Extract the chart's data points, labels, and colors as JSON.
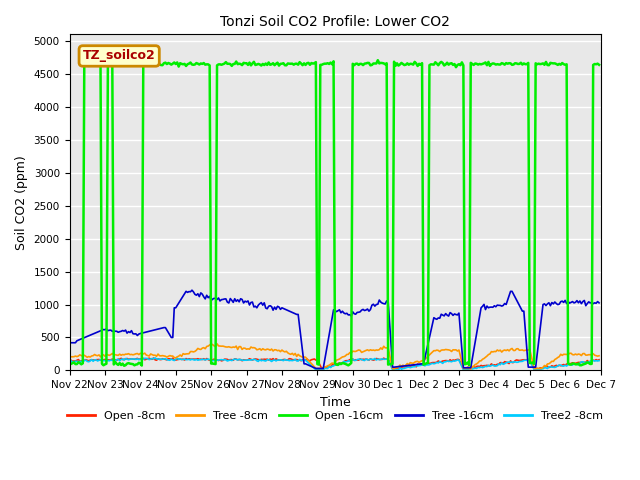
{
  "title": "Tonzi Soil CO2 Profile: Lower CO2",
  "xlabel": "Time",
  "ylabel": "Soil CO2 (ppm)",
  "ylim": [
    0,
    5100
  ],
  "yticks": [
    0,
    500,
    1000,
    1500,
    2000,
    2500,
    3000,
    3500,
    4000,
    4500,
    5000
  ],
  "background_color": "#e8e8e8",
  "legend_label_box": "TZ_soilco2",
  "legend_box_facecolor": "#ffffcc",
  "legend_box_edgecolor": "#cc8800",
  "legend_box_textcolor": "#aa0000",
  "series": {
    "open_8cm": {
      "label": "Open -8cm",
      "color": "#ff2200",
      "lw": 1.2
    },
    "tree_8cm": {
      "label": "Tree -8cm",
      "color": "#ff9900",
      "lw": 1.2
    },
    "open_16cm": {
      "label": "Open -16cm",
      "color": "#00ee00",
      "lw": 1.8
    },
    "tree_16cm": {
      "label": "Tree -16cm",
      "color": "#0000cc",
      "lw": 1.2
    },
    "tree2_8cm": {
      "label": "Tree2 -8cm",
      "color": "#00ccff",
      "lw": 1.2
    }
  },
  "xlim_start": 0,
  "xlim_end": 360,
  "xtick_positions": [
    0,
    24,
    48,
    72,
    96,
    120,
    144,
    168,
    192,
    216,
    240,
    264,
    288,
    312,
    336,
    360
  ],
  "xtick_labels": [
    "Nov 22",
    "Nov 23",
    "Nov 24",
    "Nov 25",
    "Nov 26",
    "Nov 27",
    "Nov 28",
    "Nov 29",
    "Nov 30",
    "Dec 1",
    "Dec 2",
    "Dec 3",
    "Dec 4",
    "Dec 5",
    "Dec 6",
    "Dec 7"
  ],
  "open_16cm_high_intervals": [
    [
      10,
      22
    ],
    [
      26,
      30
    ],
    [
      50,
      96
    ],
    [
      100,
      168
    ],
    [
      170,
      180
    ],
    [
      192,
      216
    ],
    [
      220,
      240
    ],
    [
      244,
      268
    ],
    [
      272,
      312
    ],
    [
      316,
      338
    ],
    [
      355,
      360
    ]
  ],
  "open_16cm_high_val": 4650,
  "open_16cm_low_val": 100
}
